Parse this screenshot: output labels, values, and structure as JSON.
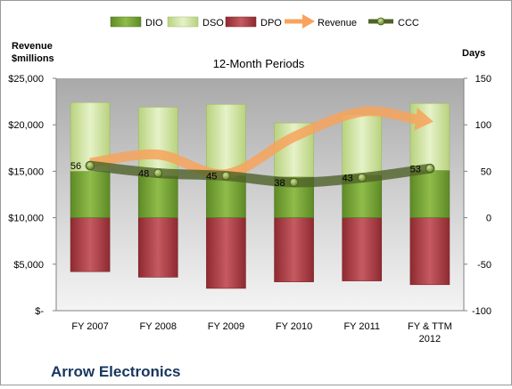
{
  "chart_data": {
    "type": "bar",
    "title": "12-Month Periods",
    "company": "Arrow Electronics",
    "left_axis_label": "Revenue\n$millions",
    "right_axis_label": "Days",
    "categories": [
      "FY 2007",
      "FY 2008",
      "FY 2009",
      "FY 2010",
      "FY 2011",
      "FY & TTM\n2012"
    ],
    "left_axis": {
      "ylim": [
        0,
        25000
      ],
      "ticks": [
        0,
        5000,
        10000,
        15000,
        20000,
        25000
      ],
      "tick_labels": [
        "$-",
        "$5,000",
        "$10,000",
        "$15,000",
        "$20,000",
        "$25,000"
      ]
    },
    "right_axis": {
      "ylim": [
        -100,
        150
      ],
      "ticks": [
        -100,
        -50,
        0,
        50,
        100,
        150
      ],
      "tick_labels": [
        "-100",
        "-50",
        "0",
        "50",
        "100",
        "150"
      ]
    },
    "series": [
      {
        "name": "DIO",
        "axis": "right",
        "kind": "bar-stack",
        "values": [
          50,
          45,
          46,
          44,
          46,
          51
        ],
        "color": "#76a33a"
      },
      {
        "name": "DSO",
        "axis": "right",
        "kind": "bar-stack",
        "values": [
          74,
          74,
          76,
          58,
          65,
          72
        ],
        "color": "#d2e6a6"
      },
      {
        "name": "DPO",
        "axis": "right",
        "kind": "bar-negative",
        "values": [
          -58,
          -64,
          -76,
          -69,
          -68,
          -72
        ],
        "color": "#b5434a"
      },
      {
        "name": "Revenue",
        "axis": "left",
        "kind": "arrow-line",
        "values": [
          15900,
          16800,
          14700,
          18700,
          21400,
          20400
        ],
        "color": "#f7a35c"
      },
      {
        "name": "CCC",
        "axis": "right",
        "kind": "line",
        "values": [
          56,
          48,
          45,
          38,
          43,
          53
        ],
        "data_labels": [
          "56",
          "48",
          "45",
          "38",
          "43",
          "53"
        ],
        "color": "#4f6228"
      }
    ],
    "grid": false,
    "legend": "top"
  }
}
